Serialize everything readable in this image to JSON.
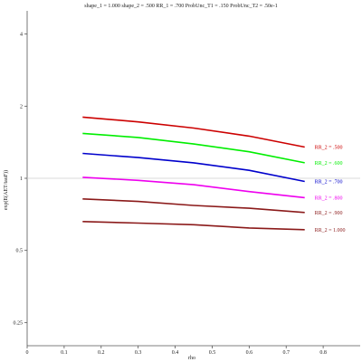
{
  "chart_data": {
    "type": "line",
    "title": "shape_1 = 1.000  shape_2 = .500  RR_1 = .700  ProbUnc_T1 = .150  ProbUnc_T2 = .50e-1",
    "xlabel": "rho",
    "ylabel": "exp(E(AET/tauF))",
    "xlim": [
      0,
      0.9
    ],
    "ylim": [
      0.2,
      5.0
    ],
    "y_scale": "log",
    "grid": false,
    "reference_line": 1,
    "reference_color": "#cfcfcf",
    "x_ticks": [
      0,
      0.1,
      0.2,
      0.3,
      0.4,
      0.5,
      0.6,
      0.7,
      0.8
    ],
    "x_tick_labels": [
      "0",
      "0.1",
      "0.2",
      "0.3",
      "0.4",
      "0.5",
      "0.6",
      "0.7",
      "0.8"
    ],
    "y_ticks": [
      0.25,
      0.5,
      1,
      2,
      4
    ],
    "y_tick_labels": [
      "0.25",
      "0.5",
      "1",
      "2",
      "4"
    ],
    "legend_placement": "right, inline at line ends",
    "x": [
      0.15,
      0.3,
      0.45,
      0.6,
      0.75
    ],
    "series": [
      {
        "name": "RR_2 = .500",
        "color": "#cc0000",
        "values": [
          1.8,
          1.72,
          1.62,
          1.5,
          1.35
        ]
      },
      {
        "name": "RR_2 = .600",
        "color": "#00ee00",
        "values": [
          1.54,
          1.48,
          1.39,
          1.29,
          1.16
        ]
      },
      {
        "name": "RR_2 = .700",
        "color": "#0000cc",
        "values": [
          1.27,
          1.22,
          1.16,
          1.08,
          0.97
        ]
      },
      {
        "name": "RR_2 = .800",
        "color": "#ee00ee",
        "values": [
          1.01,
          0.98,
          0.94,
          0.88,
          0.83
        ]
      },
      {
        "name": "RR_2 = .900",
        "color": "#8b1a1a",
        "values": [
          0.82,
          0.8,
          0.77,
          0.75,
          0.72
        ]
      },
      {
        "name": "RR_2 = 1.000",
        "color": "#8b1a1a",
        "values": [
          0.66,
          0.65,
          0.64,
          0.62,
          0.61
        ]
      }
    ]
  }
}
